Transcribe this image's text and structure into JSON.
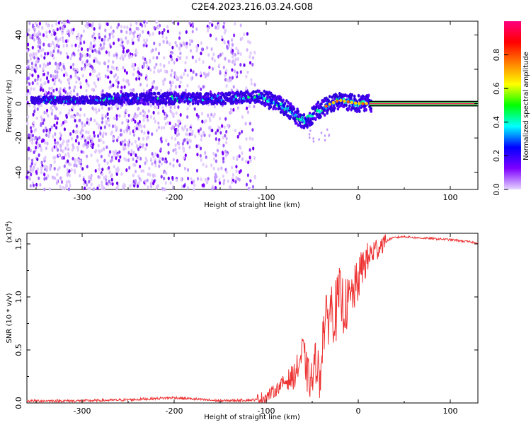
{
  "title": "C2E4.2023.216.03.24.G08",
  "chart_data": [
    {
      "type": "heatmap",
      "xlabel": "Height of straight line (km)",
      "ylabel": "Frequency (Hz)",
      "xlim": [
        -360,
        130
      ],
      "ylim": [
        -50,
        48
      ],
      "xticks": [
        -300,
        -200,
        -100,
        0,
        100
      ],
      "yticks": [
        -40,
        -20,
        0,
        20,
        40
      ],
      "colorbar": {
        "label": "Normalized spectral amplitude",
        "range": [
          0,
          1
        ],
        "ticks": [
          "0.0",
          "0.2",
          "0.4",
          "0.6",
          "0.8"
        ],
        "colors": [
          "#e6d6ff",
          "#7f00ff",
          "#0000ff",
          "#00ffff",
          "#00ff00",
          "#ffff00",
          "#ff8000",
          "#ff0000",
          "#ff0080"
        ]
      },
      "ridge": {
        "x": [
          -360,
          -300,
          -250,
          -200,
          -150,
          -110,
          -90,
          -75,
          -65,
          -58,
          -50,
          -45,
          -40,
          -30,
          -20,
          -10,
          0,
          10,
          130
        ],
        "y": [
          2,
          2,
          3,
          3,
          3,
          4,
          1,
          -4,
          -8,
          -10,
          -7,
          -4,
          -3,
          0,
          2,
          1,
          0,
          0,
          0
        ]
      }
    },
    {
      "type": "line",
      "xlabel": "Height of straight line (km)",
      "ylabel": "SNR (10 * v/v)",
      "y_multiplier": "(x10",
      "y_multiplier_exp": "4",
      "y_multiplier_close": ")",
      "xlim": [
        -360,
        130
      ],
      "ylim": [
        0,
        1.6
      ],
      "xticks": [
        -300,
        -200,
        -100,
        0,
        100
      ],
      "yticks": [
        "0.0",
        "0.5",
        "1.0",
        "1.5"
      ],
      "color": "#ee3333",
      "series": [
        {
          "x": [
            -360,
            -300,
            -250,
            -200,
            -150,
            -110,
            -100,
            -90,
            -80,
            -70,
            -65,
            -60,
            -55,
            -50,
            -45,
            -42,
            -40,
            -38,
            -35,
            -30,
            -25,
            -20,
            -15,
            -10,
            -5,
            0,
            5,
            10,
            15,
            20,
            25,
            30,
            35,
            40,
            50,
            60,
            80,
            100,
            120,
            130
          ],
          "y": [
            0.02,
            0.02,
            0.03,
            0.05,
            0.02,
            0.03,
            0.06,
            0.12,
            0.2,
            0.25,
            0.35,
            0.5,
            0.25,
            0.2,
            0.45,
            0.15,
            0.5,
            0.7,
            0.75,
            0.9,
            0.85,
            1.0,
            0.9,
            0.95,
            1.05,
            1.15,
            1.3,
            1.35,
            1.42,
            1.45,
            1.5,
            1.52,
            1.55,
            1.56,
            1.57,
            1.56,
            1.55,
            1.54,
            1.52,
            1.51
          ]
        }
      ]
    }
  ]
}
